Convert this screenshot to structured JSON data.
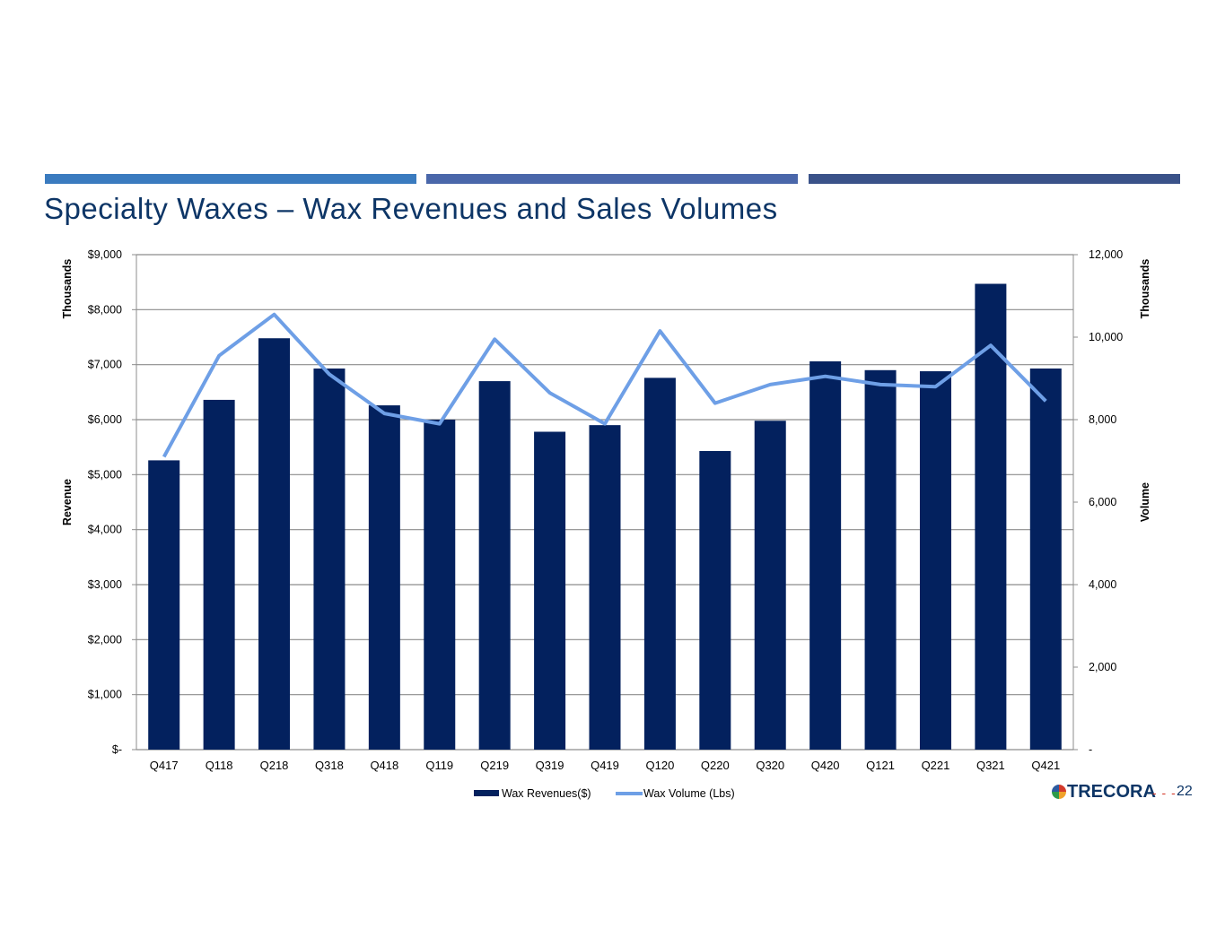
{
  "slide": {
    "title": "Specialty Waxes – Wax Revenues and Sales Volumes",
    "page_number": "22",
    "logo_text": "TRECORA",
    "footer_dashes": "- - -"
  },
  "colors": {
    "bar": "#03215e",
    "line": "#6e9fe6",
    "grid": "#8c8c8c",
    "title": "#0d3566"
  },
  "chart_data": {
    "type": "bar",
    "title": "",
    "categories": [
      "Q417",
      "Q118",
      "Q218",
      "Q318",
      "Q418",
      "Q119",
      "Q219",
      "Q319",
      "Q419",
      "Q120",
      "Q220",
      "Q320",
      "Q420",
      "Q121",
      "Q221",
      "Q321",
      "Q421"
    ],
    "series": [
      {
        "name": "Wax Revenues($)",
        "type": "bar",
        "axis": "left",
        "values": [
          5260,
          6360,
          7480,
          6930,
          6260,
          6000,
          6700,
          5780,
          5900,
          6760,
          5430,
          5980,
          7060,
          6900,
          6880,
          8470,
          6930
        ]
      },
      {
        "name": "Wax Volume (Lbs)",
        "type": "line",
        "axis": "right",
        "values": [
          7100,
          9550,
          10550,
          9100,
          8150,
          7900,
          9950,
          8650,
          7900,
          10150,
          8400,
          8850,
          9050,
          8850,
          8800,
          9800,
          8450
        ]
      }
    ],
    "y_left": {
      "label": "Revenue",
      "unit_label": "Thousands",
      "ylim": [
        0,
        9000
      ],
      "ticks": [
        0,
        1000,
        2000,
        3000,
        4000,
        5000,
        6000,
        7000,
        8000,
        9000
      ],
      "tick_labels": [
        "$-",
        "$1,000",
        "$2,000",
        "$3,000",
        "$4,000",
        "$5,000",
        "$6,000",
        "$7,000",
        "$8,000",
        "$9,000"
      ]
    },
    "y_right": {
      "label": "Volume",
      "unit_label": "Thousands",
      "ylim": [
        0,
        12000
      ],
      "ticks": [
        0,
        2000,
        4000,
        6000,
        8000,
        10000,
        12000
      ],
      "tick_labels": [
        "-",
        "2,000",
        "4,000",
        "6,000",
        "8,000",
        "10,000",
        "12,000"
      ]
    },
    "grid": true,
    "legend_position": "bottom"
  }
}
